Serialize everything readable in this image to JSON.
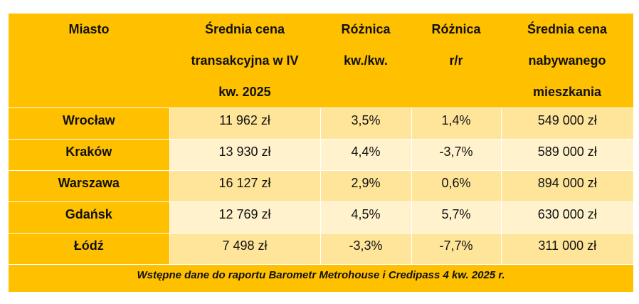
{
  "table": {
    "headers": [
      {
        "lines": [
          "Miasto"
        ]
      },
      {
        "lines": [
          "Średnia cena",
          "transakcyjna w IV",
          "kw. 2025"
        ]
      },
      {
        "lines": [
          "Różnica",
          "kw./kw."
        ]
      },
      {
        "lines": [
          "Różnica",
          "r/r"
        ]
      },
      {
        "lines": [
          "Średnia cena",
          "nabywanego",
          "mieszkania"
        ]
      }
    ],
    "rows": [
      {
        "city": "Wrocław",
        "avg_price": "11 962 zł",
        "qoq": "3,5%",
        "yoy": "1,4%",
        "avg_flat_price": "549 000 zł"
      },
      {
        "city": "Kraków",
        "avg_price": "13 930 zł",
        "qoq": "4,4%",
        "yoy": "-3,7%",
        "avg_flat_price": "589 000 zł"
      },
      {
        "city": "Warszawa",
        "avg_price": "16 127 zł",
        "qoq": "2,9%",
        "yoy": "0,6%",
        "avg_flat_price": "894 000 zł"
      },
      {
        "city": "Gdańsk",
        "avg_price": "12 769 zł",
        "qoq": "4,5%",
        "yoy": "5,7%",
        "avg_flat_price": "630 000 zł"
      },
      {
        "city": "Łódź",
        "avg_price": "7 498 zł",
        "qoq": "-3,3%",
        "yoy": "-7,7%",
        "avg_flat_price": "311 000 zł"
      }
    ],
    "footer": "Wstępne dane do raportu Barometr Metrohouse i Credipass 4 kw. 2025 r."
  },
  "colors": {
    "header_bg": "#FFC000",
    "row_shade_dark": "#FFE59A",
    "row_shade_light": "#FFF2CC",
    "border": "#FFFFFF"
  }
}
